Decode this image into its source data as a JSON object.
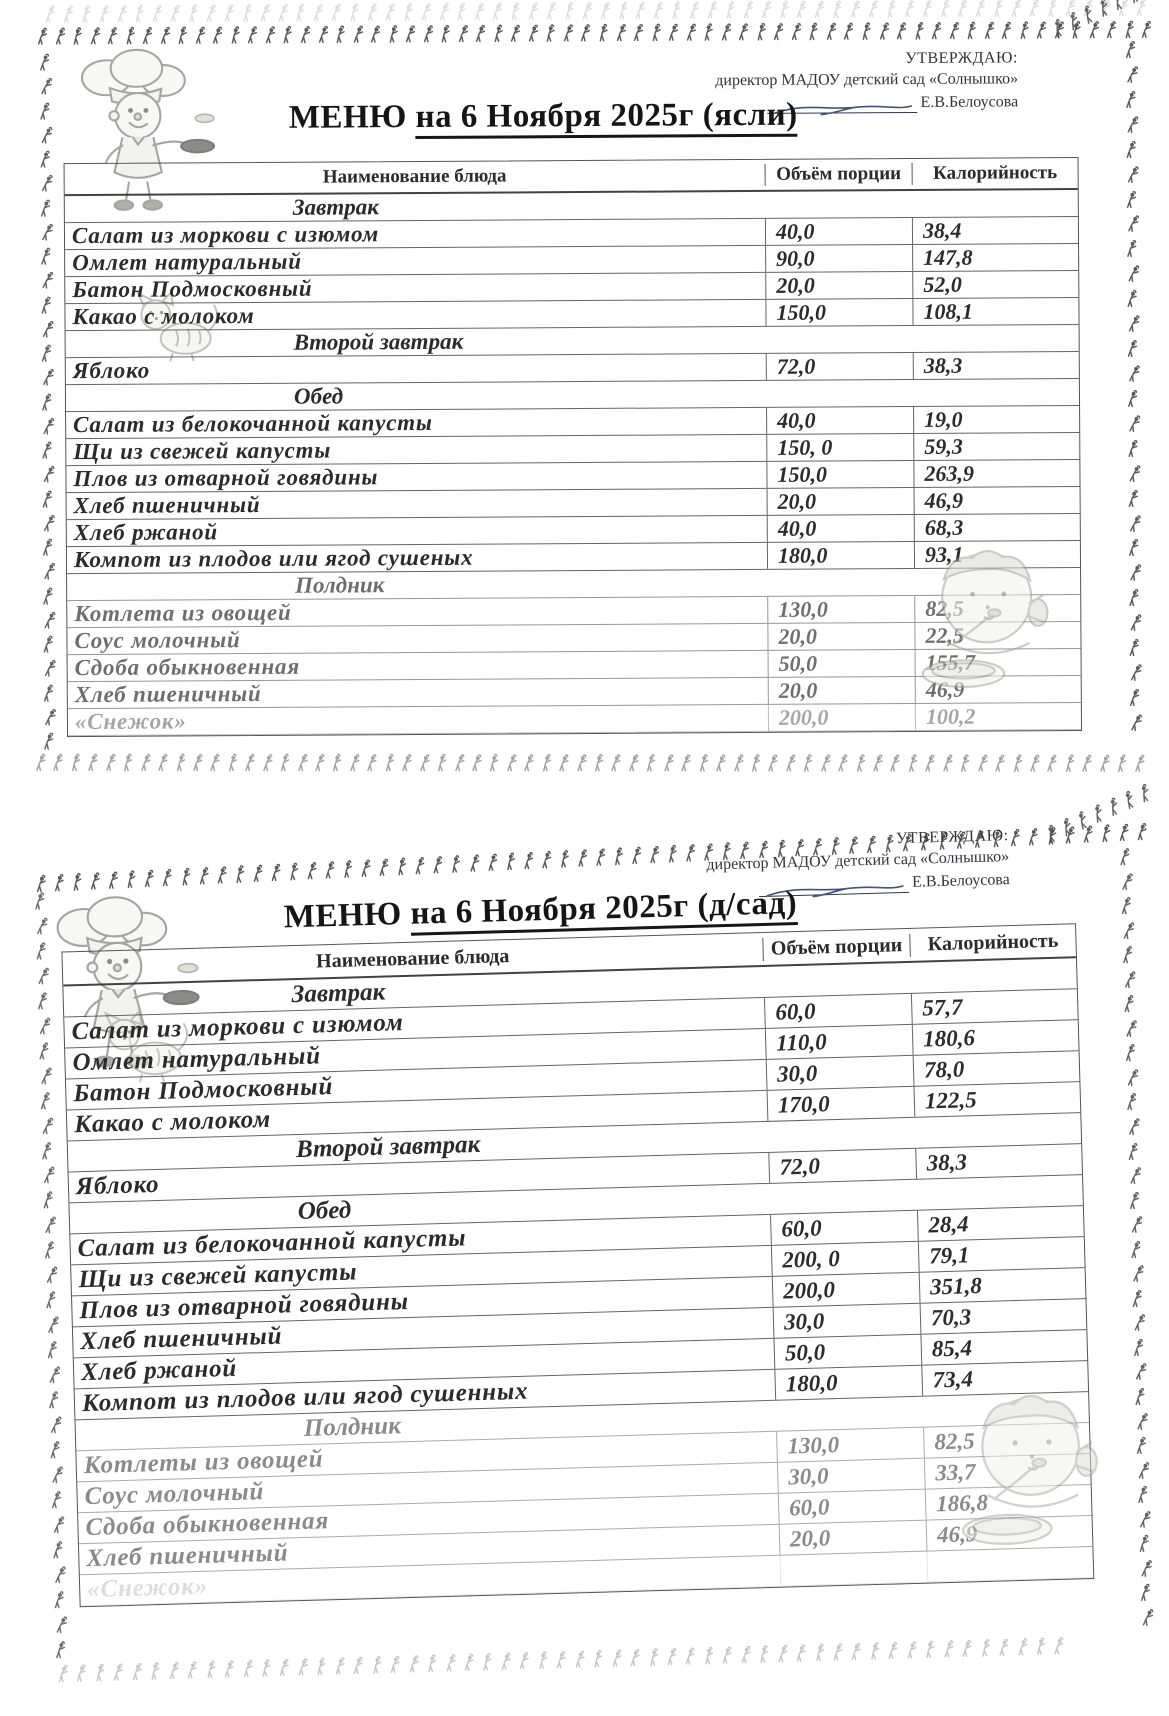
{
  "page1": {
    "approval": {
      "approved_label": "УТВЕРЖДАЮ:",
      "director_line": "директор МАДОУ детский сад «Солнышко»",
      "director_name": "Е.В.Белоусова"
    },
    "title": {
      "prefix": "МЕНЮ",
      "underlined": "на 6 Ноября 2025г (ясли)"
    },
    "table": {
      "headers": {
        "dish": "Наименование блюда",
        "portion": "Объём порции",
        "calories": "Калорийность"
      },
      "rows": [
        {
          "type": "section",
          "name": "Завтрак"
        },
        {
          "type": "dish",
          "name": "Салат из моркови с изюмом",
          "portion": "40,0",
          "calories": "38,4"
        },
        {
          "type": "dish",
          "name": "Омлет натуральный",
          "portion": "90,0",
          "calories": "147,8"
        },
        {
          "type": "dish",
          "name": "Батон Подмосковный",
          "portion": "20,0",
          "calories": "52,0"
        },
        {
          "type": "dish",
          "name": "Какао с молоком",
          "portion": "150,0",
          "calories": "108,1"
        },
        {
          "type": "section",
          "name": "Второй завтрак"
        },
        {
          "type": "dish",
          "name": "Яблоко",
          "portion": "72,0",
          "calories": "38,3"
        },
        {
          "type": "section",
          "name": "Обед"
        },
        {
          "type": "dish",
          "name": "Салат из белокочанной капусты",
          "portion": "40,0",
          "calories": "19,0"
        },
        {
          "type": "dish",
          "name": "Щи из свежей капусты",
          "portion": "150, 0",
          "calories": "59,3"
        },
        {
          "type": "dish",
          "name": "Плов из отварной говядины",
          "portion": "150,0",
          "calories": "263,9"
        },
        {
          "type": "dish",
          "name": "Хлеб пшеничный",
          "portion": "20,0",
          "calories": "46,9"
        },
        {
          "type": "dish",
          "name": "Хлеб ржаной",
          "portion": "40,0",
          "calories": "68,3"
        },
        {
          "type": "dish",
          "name": "Компот из плодов или ягод сушеных",
          "portion": "180,0",
          "calories": "93,1"
        },
        {
          "type": "section",
          "name": "Полдник",
          "faded": true
        },
        {
          "type": "dish",
          "name": "Котлета из овощей",
          "portion": "130,0",
          "calories": "82,5",
          "faded": true
        },
        {
          "type": "dish",
          "name": "Соус молочный",
          "portion": "20,0",
          "calories": "22,5",
          "faded": true
        },
        {
          "type": "dish",
          "name": "Сдоба обыкновенная",
          "portion": "50,0",
          "calories": "155,7",
          "faded": true
        },
        {
          "type": "dish",
          "name": "Хлеб пшеничный",
          "portion": "20,0",
          "calories": "46,9",
          "faded": true
        },
        {
          "type": "dish",
          "name": "«Снежок»",
          "portion": "200,0",
          "calories": "100,2",
          "ghost": true
        }
      ]
    }
  },
  "page2": {
    "approval": {
      "approved_label": "УТВЕРЖДАЮ:",
      "director_line": "директор МАДОУ детский сад «Солнышко»",
      "director_name": "Е.В.Белоусова"
    },
    "title": {
      "prefix": "МЕНЮ",
      "underlined": "на 6 Ноября 2025г (д/сад)"
    },
    "table": {
      "headers": {
        "dish": "Наименование блюда",
        "portion": "Объём порции",
        "calories": "Калорийность"
      },
      "rows": [
        {
          "type": "section",
          "name": "Завтрак"
        },
        {
          "type": "dish",
          "name": "Салат из моркови с изюмом",
          "portion": "60,0",
          "calories": "57,7"
        },
        {
          "type": "dish",
          "name": "Омлет натуральный",
          "portion": "110,0",
          "calories": "180,6"
        },
        {
          "type": "dish",
          "name": "Батон Подмосковный",
          "portion": "30,0",
          "calories": "78,0"
        },
        {
          "type": "dish",
          "name": "Какао с молоком",
          "portion": "170,0",
          "calories": "122,5"
        },
        {
          "type": "section",
          "name": "Второй завтрак"
        },
        {
          "type": "dish",
          "name": "Яблоко",
          "portion": "72,0",
          "calories": "38,3"
        },
        {
          "type": "section",
          "name": "Обед"
        },
        {
          "type": "dish",
          "name": "Салат из белокочанной капусты",
          "portion": "60,0",
          "calories": "28,4"
        },
        {
          "type": "dish",
          "name": "Щи из свежей капусты",
          "portion": "200, 0",
          "calories": "79,1"
        },
        {
          "type": "dish",
          "name": "Плов из отварной говядины",
          "portion": "200,0",
          "calories": "351,8"
        },
        {
          "type": "dish",
          "name": "Хлеб пшеничный",
          "portion": "30,0",
          "calories": "70,3"
        },
        {
          "type": "dish",
          "name": "Хлеб ржаной",
          "portion": "50,0",
          "calories": "85,4"
        },
        {
          "type": "dish",
          "name": "Компот из плодов или ягод сушенных",
          "portion": "180,0",
          "calories": "73,4"
        },
        {
          "type": "section",
          "name": "Полдник",
          "faded": true
        },
        {
          "type": "dish",
          "name": "Котлеты из овощей",
          "portion": "130,0",
          "calories": "82,5",
          "faded": true
        },
        {
          "type": "dish",
          "name": "Соус молочный",
          "portion": "30,0",
          "calories": "33,7",
          "faded": true
        },
        {
          "type": "dish",
          "name": "Сдоба обыкновенная",
          "portion": "60,0",
          "calories": "186,8",
          "faded": true
        },
        {
          "type": "dish",
          "name": "Хлеб пшеничный",
          "portion": "20,0",
          "calories": "46,9",
          "faded": true
        },
        {
          "type": "dish",
          "name": "«Снежок»",
          "portion": "",
          "calories": "",
          "ghost": true
        }
      ]
    }
  }
}
